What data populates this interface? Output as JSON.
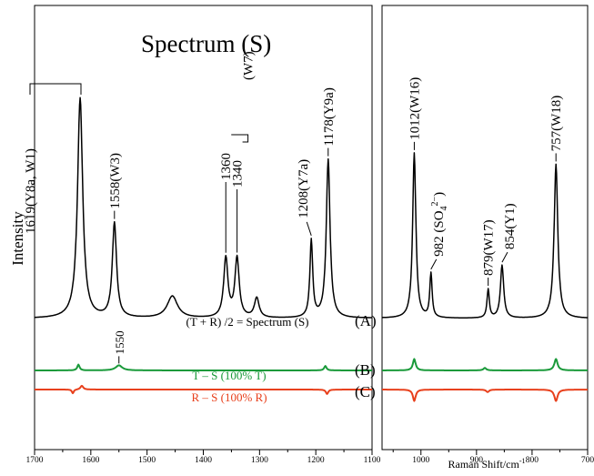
{
  "chart_data": {
    "type": "line",
    "title": "Spectrum (S)",
    "xlabel": "Raman Shift/cm",
    "xlabel_sup": "-1",
    "ylabel": "Intensity",
    "x_reversed": true,
    "x_break": [
      1100,
      1070
    ],
    "xlim": [
      1700,
      700
    ],
    "x_ticks": [
      1700,
      1600,
      1500,
      1400,
      1300,
      1200,
      1100,
      1000,
      900,
      800,
      700
    ],
    "grid": false,
    "annotations": {
      "sum": "(T + R) /2 = Spectrum (S)",
      "diff_t": "T – S (100% T)",
      "diff_r": "R – S (100% R)"
    },
    "series": [
      {
        "label": "(A)",
        "color": "#000000",
        "baseline": 0,
        "peaks": [
          {
            "x": 1619,
            "h": 100,
            "w": 11
          },
          {
            "x": 1558,
            "h": 43,
            "w": 9
          },
          {
            "x": 1455,
            "h": 10,
            "w": 22
          },
          {
            "x": 1360,
            "h": 27,
            "w": 9
          },
          {
            "x": 1340,
            "h": 27,
            "w": 9
          },
          {
            "x": 1305,
            "h": 9,
            "w": 10
          },
          {
            "x": 1208,
            "h": 35,
            "w": 6
          },
          {
            "x": 1178,
            "h": 72,
            "w": 8
          },
          {
            "x": 1012,
            "h": 75,
            "w": 7
          },
          {
            "x": 982,
            "h": 20,
            "w": 5
          },
          {
            "x": 879,
            "h": 13,
            "w": 5
          },
          {
            "x": 854,
            "h": 24,
            "w": 7
          },
          {
            "x": 757,
            "h": 70,
            "w": 8
          }
        ]
      },
      {
        "label": "(B)",
        "color": "#1a9a3a",
        "baseline": 0,
        "peaks": [
          {
            "x": 1622,
            "h": 4.5,
            "w": 5
          },
          {
            "x": 1550,
            "h": 4,
            "w": 14
          },
          {
            "x": 1183,
            "h": 3.5,
            "w": 5
          },
          {
            "x": 1012,
            "h": 9,
            "w": 6
          },
          {
            "x": 885,
            "h": 2,
            "w": 6
          },
          {
            "x": 757,
            "h": 9,
            "w": 7
          }
        ]
      },
      {
        "label": "(C)",
        "color": "#e8401c",
        "baseline": 0,
        "peaks": [
          {
            "x": 1632,
            "h": -3,
            "w": 4
          },
          {
            "x": 1616,
            "h": 3,
            "w": 6
          },
          {
            "x": 1180,
            "h": -3.5,
            "w": 5
          },
          {
            "x": 1012,
            "h": -9,
            "w": 6
          },
          {
            "x": 880,
            "h": -2,
            "w": 6
          },
          {
            "x": 757,
            "h": -9,
            "w": 7
          }
        ]
      }
    ],
    "peak_labels": [
      {
        "x": 1619,
        "text": "1619(Y8a, W1)"
      },
      {
        "x": 1558,
        "text": "1558(W3)"
      },
      {
        "x": 1360,
        "text": "1360"
      },
      {
        "x": 1340,
        "text": "1340"
      },
      {
        "text": "(W7)"
      },
      {
        "x": 1208,
        "text": "1208(Y7a)"
      },
      {
        "x": 1178,
        "text": "1178(Y9a)"
      },
      {
        "x": 1012,
        "text": "1012(W16)"
      },
      {
        "x": 982,
        "text": "982 (SO",
        "sub": "4",
        "sup": "2−",
        "tail": ")"
      },
      {
        "x": 879,
        "text": "879(W17)"
      },
      {
        "x": 854,
        "text": "854(Y1)"
      },
      {
        "x": 757,
        "text": "757(W18)"
      },
      {
        "x": 1550,
        "text": "1550"
      }
    ]
  }
}
